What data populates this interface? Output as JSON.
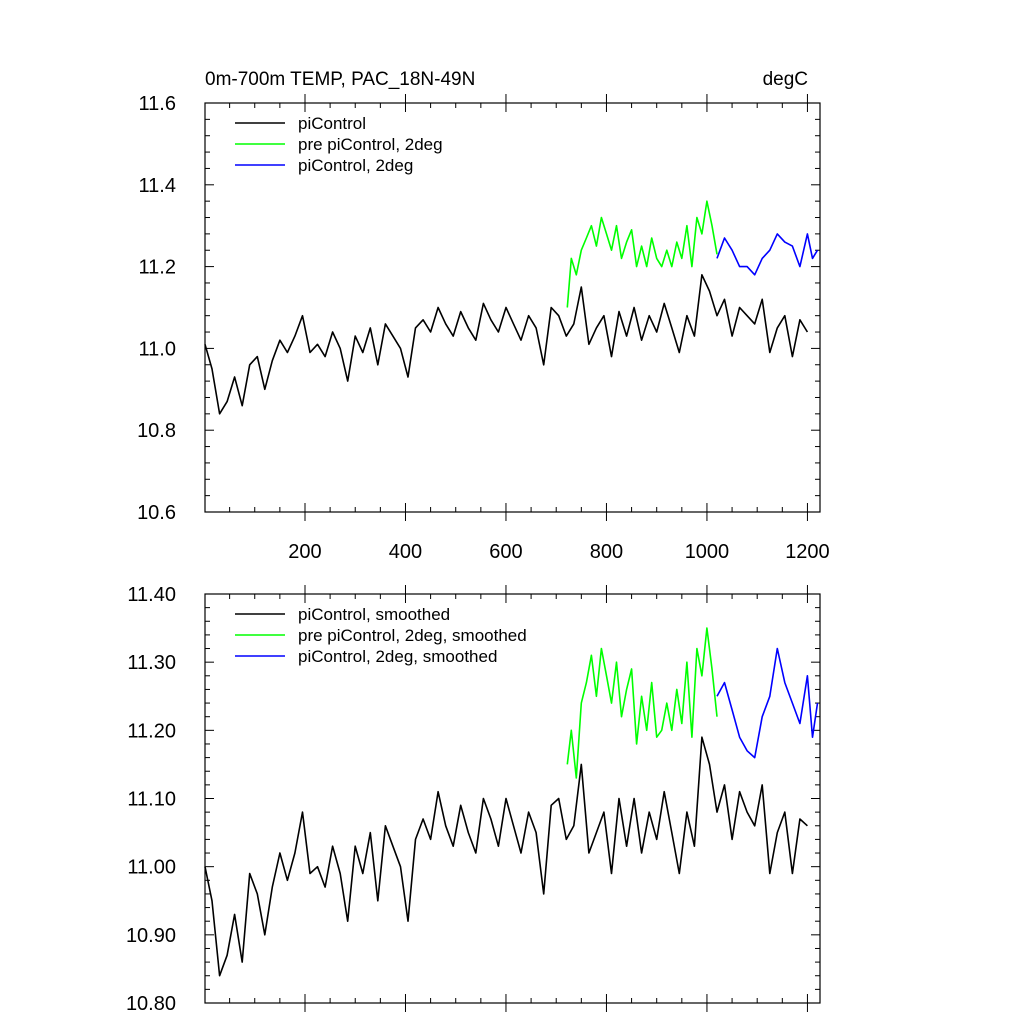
{
  "chart_data": [
    {
      "type": "line",
      "title_left": "0m-700m TEMP, PAC_18N-49N",
      "title_right": "degC",
      "xlabel": "",
      "ylabel": "",
      "xlim": [
        1,
        1225
      ],
      "ylim": [
        10.6,
        11.6
      ],
      "xticks": [
        200,
        400,
        600,
        800,
        1000,
        1200
      ],
      "xtick_labels": [
        "200",
        "400",
        "600",
        "800",
        "1000",
        "1200"
      ],
      "yticks": [
        10.6,
        10.8,
        11.0,
        11.2,
        11.4,
        11.6
      ],
      "ytick_labels": [
        "10.6",
        "10.8",
        "11.0",
        "11.2",
        "11.4",
        "11.6"
      ],
      "legend_position": "top-left",
      "series": [
        {
          "name": "piControl",
          "color": "#000000",
          "x": [
            1,
            15,
            30,
            45,
            60,
            75,
            90,
            105,
            120,
            135,
            150,
            165,
            180,
            195,
            210,
            225,
            240,
            255,
            270,
            285,
            300,
            315,
            330,
            345,
            360,
            375,
            390,
            405,
            420,
            435,
            450,
            465,
            480,
            495,
            510,
            525,
            540,
            555,
            570,
            585,
            600,
            615,
            630,
            645,
            660,
            675,
            690,
            705,
            720,
            735,
            750,
            765,
            780,
            795,
            810,
            825,
            840,
            855,
            870,
            885,
            900,
            915,
            930,
            945,
            960,
            975,
            990,
            1005,
            1020,
            1035,
            1050,
            1065,
            1080,
            1095,
            1110,
            1125,
            1140,
            1155,
            1170,
            1185,
            1200
          ],
          "y": [
            11.01,
            10.95,
            10.84,
            10.87,
            10.93,
            10.86,
            10.96,
            10.98,
            10.9,
            10.97,
            11.02,
            10.99,
            11.03,
            11.08,
            10.99,
            11.01,
            10.98,
            11.04,
            11.0,
            10.92,
            11.03,
            10.99,
            11.05,
            10.96,
            11.06,
            11.03,
            11.0,
            10.93,
            11.05,
            11.07,
            11.04,
            11.1,
            11.06,
            11.03,
            11.09,
            11.05,
            11.02,
            11.11,
            11.07,
            11.04,
            11.1,
            11.06,
            11.02,
            11.08,
            11.05,
            10.96,
            11.1,
            11.08,
            11.03,
            11.06,
            11.15,
            11.01,
            11.05,
            11.08,
            10.98,
            11.09,
            11.03,
            11.1,
            11.02,
            11.08,
            11.04,
            11.11,
            11.05,
            10.99,
            11.08,
            11.03,
            11.18,
            11.14,
            11.08,
            11.12,
            11.03,
            11.1,
            11.08,
            11.06,
            11.12,
            10.99,
            11.05,
            11.08,
            10.98,
            11.07,
            11.04
          ]
        },
        {
          "name": "pre piControl, 2deg",
          "color": "#00ff00",
          "x": [
            722,
            730,
            740,
            750,
            760,
            770,
            780,
            790,
            800,
            810,
            820,
            830,
            840,
            850,
            860,
            870,
            880,
            890,
            900,
            910,
            920,
            930,
            940,
            950,
            960,
            970,
            980,
            990,
            1000,
            1010,
            1020
          ],
          "y": [
            11.1,
            11.22,
            11.18,
            11.24,
            11.27,
            11.3,
            11.25,
            11.32,
            11.28,
            11.24,
            11.3,
            11.22,
            11.26,
            11.29,
            11.2,
            11.25,
            11.2,
            11.27,
            11.22,
            11.2,
            11.24,
            11.2,
            11.26,
            11.22,
            11.3,
            11.2,
            11.32,
            11.28,
            11.36,
            11.3,
            11.23
          ]
        },
        {
          "name": "piControl, 2deg",
          "color": "#0000ff",
          "x": [
            1020,
            1035,
            1050,
            1065,
            1080,
            1095,
            1110,
            1125,
            1140,
            1155,
            1170,
            1185,
            1200,
            1210,
            1220
          ],
          "y": [
            11.22,
            11.27,
            11.24,
            11.2,
            11.2,
            11.18,
            11.22,
            11.24,
            11.28,
            11.26,
            11.25,
            11.2,
            11.28,
            11.22,
            11.24
          ]
        }
      ]
    },
    {
      "type": "line",
      "xlabel": "",
      "ylabel": "",
      "xlim": [
        1,
        1225
      ],
      "ylim": [
        10.8,
        11.4
      ],
      "xticks": [
        200,
        400,
        600,
        800,
        1000,
        1200
      ],
      "yticks": [
        10.8,
        10.9,
        11.0,
        11.1,
        11.2,
        11.3,
        11.4
      ],
      "ytick_labels": [
        "10.80",
        "10.90",
        "11.00",
        "11.10",
        "11.20",
        "11.30",
        "11.40"
      ],
      "legend_position": "top-left",
      "series": [
        {
          "name": "piControl, smoothed",
          "color": "#000000",
          "x": [
            1,
            15,
            30,
            45,
            60,
            75,
            90,
            105,
            120,
            135,
            150,
            165,
            180,
            195,
            210,
            225,
            240,
            255,
            270,
            285,
            300,
            315,
            330,
            345,
            360,
            375,
            390,
            405,
            420,
            435,
            450,
            465,
            480,
            495,
            510,
            525,
            540,
            555,
            570,
            585,
            600,
            615,
            630,
            645,
            660,
            675,
            690,
            705,
            720,
            735,
            750,
            765,
            780,
            795,
            810,
            825,
            840,
            855,
            870,
            885,
            900,
            915,
            930,
            945,
            960,
            975,
            990,
            1005,
            1020,
            1035,
            1050,
            1065,
            1080,
            1095,
            1110,
            1125,
            1140,
            1155,
            1170,
            1185,
            1200
          ],
          "y": [
            11.0,
            10.95,
            10.84,
            10.87,
            10.93,
            10.86,
            10.99,
            10.96,
            10.9,
            10.97,
            11.02,
            10.98,
            11.02,
            11.08,
            10.99,
            11.0,
            10.97,
            11.03,
            10.99,
            10.92,
            11.03,
            10.99,
            11.05,
            10.95,
            11.06,
            11.03,
            11.0,
            10.92,
            11.04,
            11.07,
            11.04,
            11.11,
            11.06,
            11.03,
            11.09,
            11.05,
            11.02,
            11.1,
            11.07,
            11.03,
            11.1,
            11.06,
            11.02,
            11.08,
            11.05,
            10.96,
            11.09,
            11.1,
            11.04,
            11.06,
            11.15,
            11.02,
            11.05,
            11.08,
            10.99,
            11.1,
            11.03,
            11.1,
            11.02,
            11.08,
            11.04,
            11.11,
            11.05,
            10.99,
            11.08,
            11.03,
            11.19,
            11.15,
            11.08,
            11.12,
            11.04,
            11.11,
            11.08,
            11.06,
            11.12,
            10.99,
            11.05,
            11.08,
            10.99,
            11.07,
            11.06
          ]
        },
        {
          "name": "pre piControl, 2deg, smoothed",
          "color": "#00ff00",
          "x": [
            722,
            730,
            740,
            750,
            760,
            770,
            780,
            790,
            800,
            810,
            820,
            830,
            840,
            850,
            860,
            870,
            880,
            890,
            900,
            910,
            920,
            930,
            940,
            950,
            960,
            970,
            980,
            990,
            1000,
            1010,
            1020
          ],
          "y": [
            11.15,
            11.2,
            11.13,
            11.24,
            11.27,
            11.31,
            11.25,
            11.32,
            11.28,
            11.24,
            11.3,
            11.22,
            11.26,
            11.29,
            11.18,
            11.25,
            11.2,
            11.27,
            11.19,
            11.2,
            11.24,
            11.2,
            11.26,
            11.21,
            11.3,
            11.19,
            11.32,
            11.28,
            11.35,
            11.29,
            11.22
          ]
        },
        {
          "name": "piControl, 2deg, smoothed",
          "color": "#0000ff",
          "x": [
            1020,
            1035,
            1050,
            1065,
            1080,
            1095,
            1110,
            1125,
            1140,
            1155,
            1170,
            1185,
            1200,
            1210,
            1220
          ],
          "y": [
            11.25,
            11.27,
            11.23,
            11.19,
            11.17,
            11.16,
            11.22,
            11.25,
            11.32,
            11.27,
            11.24,
            11.21,
            11.28,
            11.19,
            11.24
          ]
        }
      ]
    }
  ]
}
